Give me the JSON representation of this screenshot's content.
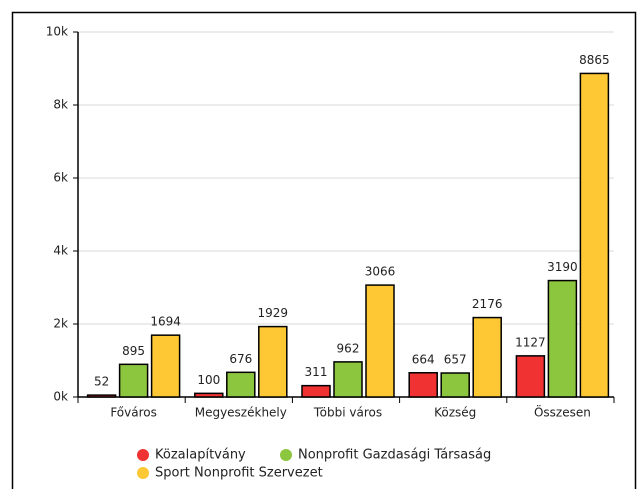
{
  "chart_data": {
    "type": "bar",
    "categories": [
      "Főváros",
      "Megyeszékhely",
      "Többi város",
      "Község",
      "Összesen"
    ],
    "series": [
      {
        "name": "Közalapítvány",
        "color": "#f03232",
        "values": [
          52,
          100,
          311,
          664,
          1127
        ]
      },
      {
        "name": "Nonprofit Gazdasági Társaság",
        "color": "#8cc63f",
        "values": [
          895,
          676,
          962,
          657,
          3190
        ]
      },
      {
        "name": "Sport Nonprofit Szervezet",
        "color": "#fdc833",
        "values": [
          1694,
          1929,
          3066,
          2176,
          8865
        ]
      }
    ],
    "ylim": [
      0,
      10000
    ],
    "yticks": [
      {
        "value": 0,
        "label": "0k"
      },
      {
        "value": 2000,
        "label": "2k"
      },
      {
        "value": 4000,
        "label": "4k"
      },
      {
        "value": 6000,
        "label": "6k"
      },
      {
        "value": 8000,
        "label": "8k"
      },
      {
        "value": 10000,
        "label": "10k"
      }
    ],
    "grid": true
  }
}
